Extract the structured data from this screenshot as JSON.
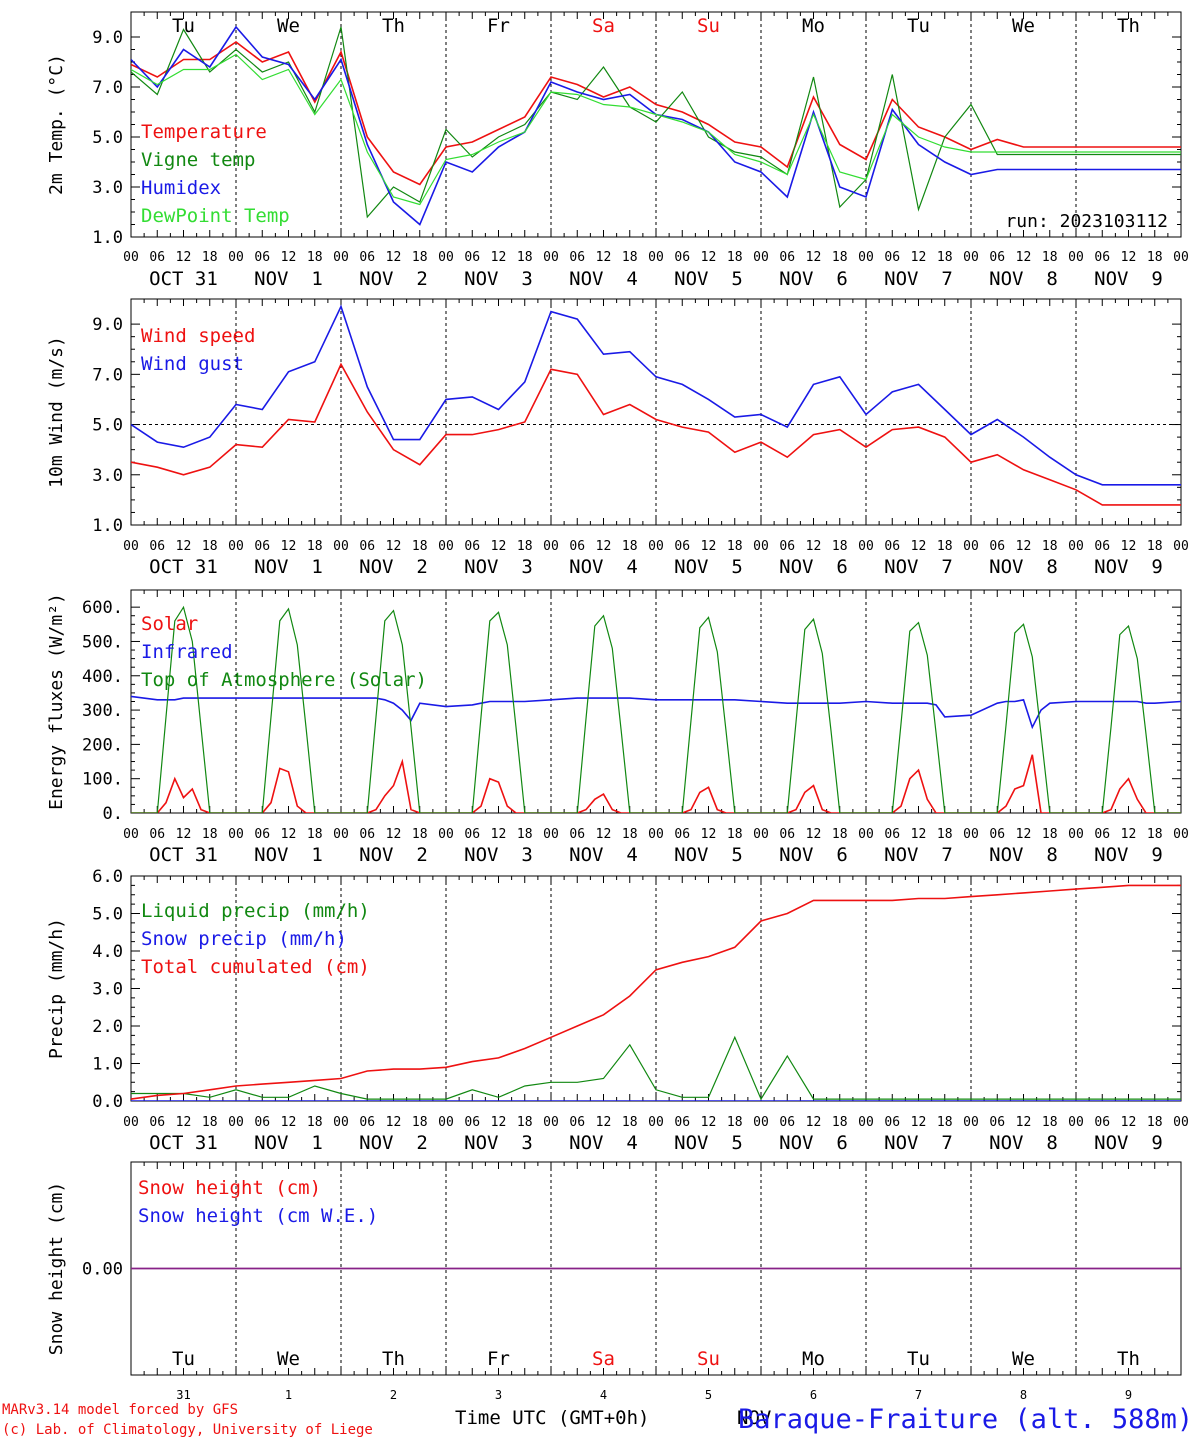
{
  "colors": {
    "red": "#ee1111",
    "blue": "#1a1ae6",
    "green": "#118811",
    "lightgreen": "#33dd33",
    "purple": "#882288",
    "axis": "#000000"
  },
  "days": [
    "Tu",
    "We",
    "Th",
    "Fr",
    "Sa",
    "Su",
    "Mo",
    "Tu",
    "We",
    "Th"
  ],
  "day_colors": [
    "black",
    "black",
    "black",
    "black",
    "red",
    "red",
    "black",
    "black",
    "black",
    "black"
  ],
  "date_labels": [
    "OCT 31",
    "NOV  1",
    "NOV  2",
    "NOV  3",
    "NOV  4",
    "NOV  5",
    "NOV  6",
    "NOV  7",
    "NOV  8",
    "NOV  9"
  ],
  "hour_labels": [
    "00",
    "06",
    "12",
    "18"
  ],
  "final_hour": "00",
  "bottom_day_numbers": [
    "31",
    "1",
    "2",
    "3",
    "4",
    "5",
    "6",
    "7",
    "8",
    "9"
  ],
  "footer": {
    "model": "MARv3.14 model forced by GFS",
    "credit": "(c) Lab. of Climatology, University of Liege",
    "xlabel": "Time UTC (GMT+0h)",
    "xlabel_overlap": "NOV",
    "station": "Baraque-Fraiture (alt. 588m)"
  },
  "chart_data": [
    {
      "id": "temp",
      "type": "line",
      "ylabel": "2m Temp. (°C)",
      "ylim": [
        1.0,
        10.0
      ],
      "yticks": [
        "1.0",
        "3.0",
        "5.0",
        "7.0",
        "9.0"
      ],
      "yticks_values": [
        1,
        3,
        5,
        7,
        9
      ],
      "note": "run: 2023103112",
      "x_hours": [
        0,
        6,
        12,
        18,
        24,
        30,
        36,
        42,
        48,
        54,
        60,
        66,
        72,
        78,
        84,
        90,
        96,
        102,
        108,
        114,
        120,
        126,
        132,
        138,
        144,
        150,
        156,
        162,
        168,
        174,
        180,
        186,
        192,
        198,
        204,
        210,
        216,
        222,
        228,
        234,
        240
      ],
      "series": [
        {
          "name": "Temperature",
          "color": "red",
          "values": [
            7.9,
            7.4,
            8.1,
            8.1,
            8.8,
            8.0,
            8.4,
            6.4,
            8.4,
            5.0,
            3.6,
            3.1,
            4.6,
            4.8,
            5.3,
            5.8,
            7.4,
            7.1,
            6.6,
            7.0,
            6.3,
            6.0,
            5.5,
            4.8,
            4.6,
            3.8,
            6.6,
            4.7,
            4.1,
            6.5,
            5.4,
            5.0,
            4.5,
            4.9,
            4.6,
            4.6,
            4.6,
            4.6,
            4.6,
            4.6,
            4.6
          ]
        },
        {
          "name": "Vigne temp",
          "color": "green",
          "values": [
            7.6,
            6.7,
            9.3,
            7.6,
            8.5,
            7.6,
            8.0,
            6.0,
            9.4,
            1.8,
            3.0,
            2.4,
            5.3,
            4.2,
            5.0,
            5.5,
            6.8,
            6.5,
            7.8,
            6.2,
            5.6,
            6.8,
            5.0,
            4.4,
            4.2,
            3.5,
            7.4,
            2.2,
            3.3,
            7.5,
            2.1,
            5.0,
            6.3,
            4.3,
            4.3,
            4.3,
            4.3,
            4.3,
            4.3,
            4.3,
            4.3
          ]
        },
        {
          "name": "Humidex",
          "color": "blue",
          "values": [
            8.1,
            7.0,
            8.5,
            7.8,
            9.4,
            8.2,
            7.9,
            6.5,
            8.1,
            4.7,
            2.4,
            1.5,
            4.0,
            3.6,
            4.6,
            5.2,
            7.2,
            6.8,
            6.5,
            6.7,
            5.9,
            5.7,
            5.2,
            4.0,
            3.6,
            2.6,
            6.0,
            3.0,
            2.6,
            6.1,
            4.7,
            4.0,
            3.5,
            3.7,
            3.7,
            3.7,
            3.7,
            3.7,
            3.7,
            3.7,
            3.7
          ]
        },
        {
          "name": "DewPoint Temp",
          "color": "lightgreen",
          "values": [
            7.7,
            7.1,
            7.7,
            7.7,
            8.3,
            7.3,
            7.7,
            5.9,
            7.3,
            4.4,
            2.6,
            2.3,
            4.1,
            4.3,
            4.8,
            5.2,
            6.8,
            6.7,
            6.3,
            6.2,
            5.9,
            5.6,
            5.2,
            4.3,
            4.0,
            3.5,
            5.9,
            3.6,
            3.3,
            5.9,
            5.0,
            4.6,
            4.4,
            4.4,
            4.4,
            4.4,
            4.4,
            4.4,
            4.4,
            4.4,
            4.4
          ]
        }
      ]
    },
    {
      "id": "wind",
      "type": "line",
      "ylabel": "10m Wind (m/s)",
      "ylim": [
        1.0,
        10.0
      ],
      "yticks": [
        "1.0",
        "3.0",
        "5.0",
        "7.0",
        "9.0"
      ],
      "yticks_values": [
        1,
        3,
        5,
        7,
        9
      ],
      "ref_line": 5.0,
      "x_hours": [
        0,
        6,
        12,
        18,
        24,
        30,
        36,
        42,
        48,
        54,
        60,
        66,
        72,
        78,
        84,
        90,
        96,
        102,
        108,
        114,
        120,
        126,
        132,
        138,
        144,
        150,
        156,
        162,
        168,
        174,
        180,
        186,
        192,
        198,
        204,
        210,
        216,
        222,
        228,
        234,
        240
      ],
      "series": [
        {
          "name": "Wind speed",
          "color": "red",
          "values": [
            3.5,
            3.3,
            3.0,
            3.3,
            4.2,
            4.1,
            5.2,
            5.1,
            7.4,
            5.5,
            4.0,
            3.4,
            4.6,
            4.6,
            4.8,
            5.1,
            7.2,
            7.0,
            5.4,
            5.8,
            5.2,
            4.9,
            4.7,
            3.9,
            4.3,
            3.7,
            4.6,
            4.8,
            4.1,
            4.8,
            4.9,
            4.5,
            3.5,
            3.8,
            3.2,
            2.8,
            2.4,
            1.8,
            1.8,
            1.8,
            1.8
          ]
        },
        {
          "name": "Wind gust",
          "color": "blue",
          "values": [
            5.0,
            4.3,
            4.1,
            4.5,
            5.8,
            5.6,
            7.1,
            7.5,
            9.7,
            6.5,
            4.4,
            4.4,
            6.0,
            6.1,
            5.6,
            6.7,
            9.5,
            9.2,
            7.8,
            7.9,
            6.9,
            6.6,
            6.0,
            5.3,
            5.4,
            4.9,
            6.6,
            6.9,
            5.4,
            6.3,
            6.6,
            5.6,
            4.6,
            5.2,
            4.5,
            3.7,
            3.0,
            2.6,
            2.6,
            2.6,
            2.6
          ]
        }
      ]
    },
    {
      "id": "energy",
      "type": "line",
      "ylabel": "Energy fluxes (W/m²)",
      "ylim": [
        0,
        650
      ],
      "yticks": [
        "0.",
        "100.",
        "200.",
        "300.",
        "400.",
        "500.",
        "600."
      ],
      "yticks_values": [
        0,
        100,
        200,
        300,
        400,
        500,
        600
      ],
      "x_hours": [
        0,
        6,
        8,
        10,
        12,
        14,
        16,
        18,
        24,
        30,
        32,
        34,
        36,
        38,
        40,
        42,
        48,
        54,
        56,
        58,
        60,
        62,
        64,
        66,
        72,
        78,
        80,
        82,
        84,
        86,
        88,
        90,
        96,
        102,
        104,
        106,
        108,
        110,
        112,
        114,
        120,
        126,
        128,
        130,
        132,
        134,
        136,
        138,
        144,
        150,
        152,
        154,
        156,
        158,
        160,
        162,
        168,
        174,
        176,
        178,
        180,
        182,
        184,
        186,
        192,
        198,
        200,
        202,
        204,
        206,
        208,
        210,
        216,
        222,
        224,
        226,
        228,
        230,
        232,
        234,
        240
      ],
      "series": [
        {
          "name": "Solar",
          "color": "red",
          "values": [
            0,
            0,
            30,
            100,
            45,
            70,
            10,
            0,
            0,
            0,
            30,
            130,
            120,
            20,
            0,
            0,
            0,
            0,
            10,
            50,
            80,
            150,
            10,
            0,
            0,
            0,
            20,
            100,
            90,
            20,
            0,
            0,
            0,
            0,
            10,
            40,
            55,
            10,
            0,
            0,
            0,
            0,
            10,
            60,
            75,
            10,
            0,
            0,
            0,
            0,
            10,
            60,
            80,
            10,
            0,
            0,
            0,
            0,
            20,
            100,
            125,
            40,
            0,
            0,
            0,
            0,
            20,
            70,
            80,
            170,
            0,
            0,
            0,
            0,
            10,
            70,
            100,
            40,
            0,
            0,
            0
          ]
        },
        {
          "name": "Infrared",
          "color": "blue",
          "values": [
            340,
            330,
            330,
            330,
            335,
            335,
            335,
            335,
            335,
            335,
            335,
            335,
            335,
            335,
            335,
            335,
            335,
            335,
            335,
            330,
            320,
            300,
            270,
            320,
            310,
            315,
            320,
            325,
            325,
            325,
            325,
            325,
            330,
            335,
            335,
            335,
            335,
            335,
            335,
            335,
            330,
            330,
            330,
            330,
            330,
            330,
            330,
            330,
            325,
            320,
            320,
            320,
            320,
            320,
            320,
            320,
            325,
            320,
            320,
            320,
            320,
            320,
            315,
            280,
            285,
            320,
            325,
            325,
            330,
            250,
            300,
            320,
            325,
            325,
            325,
            325,
            325,
            325,
            320,
            320,
            325
          ]
        },
        {
          "name": "Top of Atmosphere (Solar)",
          "color": "green",
          "values": [
            0,
            0,
            280,
            560,
            600,
            500,
            250,
            0,
            0,
            0,
            280,
            560,
            595,
            490,
            250,
            0,
            0,
            0,
            280,
            560,
            590,
            490,
            250,
            0,
            0,
            0,
            280,
            560,
            585,
            490,
            250,
            0,
            0,
            0,
            275,
            545,
            575,
            480,
            245,
            0,
            0,
            0,
            270,
            540,
            570,
            470,
            240,
            0,
            0,
            0,
            265,
            535,
            565,
            465,
            240,
            0,
            0,
            0,
            260,
            530,
            555,
            460,
            235,
            0,
            0,
            0,
            255,
            525,
            550,
            455,
            230,
            0,
            0,
            0,
            250,
            520,
            545,
            450,
            230,
            0,
            0
          ]
        }
      ]
    },
    {
      "id": "precip",
      "type": "line",
      "ylabel": "Precip (mm/h)",
      "ylim": [
        0,
        6.0
      ],
      "yticks": [
        "0.0",
        "1.0",
        "2.0",
        "3.0",
        "4.0",
        "5.0",
        "6.0"
      ],
      "yticks_values": [
        0,
        1,
        2,
        3,
        4,
        5,
        6
      ],
      "x_hours": [
        0,
        6,
        12,
        18,
        24,
        30,
        36,
        42,
        48,
        54,
        60,
        66,
        72,
        78,
        84,
        90,
        96,
        102,
        108,
        114,
        120,
        126,
        132,
        138,
        144,
        150,
        156,
        162,
        168,
        174,
        180,
        186,
        192,
        198,
        204,
        210,
        216,
        222,
        228,
        234,
        240
      ],
      "series": [
        {
          "name": "Liquid precip (mm/h)",
          "color": "green",
          "values": [
            0.2,
            0.2,
            0.2,
            0.1,
            0.3,
            0.1,
            0.1,
            0.4,
            0.2,
            0.05,
            0.05,
            0.05,
            0.05,
            0.3,
            0.1,
            0.4,
            0.5,
            0.5,
            0.6,
            1.5,
            0.3,
            0.1,
            0.1,
            1.7,
            0.05,
            1.2,
            0.05,
            0.05,
            0.05,
            0.05,
            0.05,
            0.05,
            0.05,
            0.05,
            0.05,
            0.05,
            0.05,
            0.05,
            0.05,
            0.05,
            0.05
          ]
        },
        {
          "name": "Snow precip (mm/h)",
          "color": "blue",
          "values": [
            0,
            0,
            0,
            0,
            0,
            0,
            0,
            0,
            0,
            0,
            0,
            0,
            0,
            0,
            0,
            0,
            0,
            0,
            0,
            0,
            0,
            0,
            0,
            0,
            0,
            0,
            0,
            0,
            0,
            0,
            0,
            0,
            0,
            0,
            0,
            0,
            0,
            0,
            0,
            0,
            0
          ]
        },
        {
          "name": "Total cumulated (cm)",
          "color": "red",
          "values": [
            0.05,
            0.15,
            0.2,
            0.3,
            0.4,
            0.45,
            0.5,
            0.55,
            0.6,
            0.8,
            0.85,
            0.85,
            0.9,
            1.05,
            1.15,
            1.4,
            1.7,
            2.0,
            2.3,
            2.8,
            3.5,
            3.7,
            3.85,
            4.1,
            4.8,
            5.0,
            5.35,
            5.35,
            5.35,
            5.35,
            5.4,
            5.4,
            5.45,
            5.5,
            5.55,
            5.6,
            5.65,
            5.7,
            5.75,
            5.75,
            5.75
          ]
        }
      ]
    },
    {
      "id": "snow",
      "type": "line",
      "ylabel": "Snow height (cm)",
      "ylim": [
        -1,
        1
      ],
      "yticks": [
        "0.00"
      ],
      "yticks_values": [
        0
      ],
      "x_hours": [
        0,
        240
      ],
      "series": [
        {
          "name": "Snow height (cm)",
          "color": "red",
          "values": [
            0,
            0
          ]
        },
        {
          "name": "Snow height (cm W.E.)",
          "color": "blue",
          "values": [
            0,
            0
          ]
        }
      ]
    }
  ]
}
